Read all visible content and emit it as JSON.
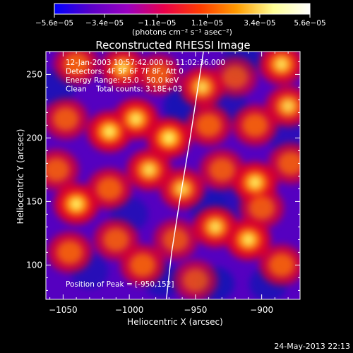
{
  "chart_data": {
    "type": "heatmap",
    "title": "Reconstructed RHESSI Image",
    "xlabel": "Heliocentric X (arcsec)",
    "ylabel": "Heliocentric Y (arcsec)",
    "xlim": [
      -1063,
      -871
    ],
    "ylim": [
      73,
      268
    ],
    "x_ticks": [
      -1050,
      -1000,
      -950,
      -900
    ],
    "x_tick_labels": [
      "−1050",
      "−1000",
      "−950",
      "−900"
    ],
    "y_ticks": [
      100,
      150,
      200,
      250
    ],
    "y_tick_labels": [
      "100",
      "150",
      "200",
      "250"
    ],
    "colorbar": {
      "min": -5.6e-05,
      "max": 5.6e-05,
      "ticks": [
        -5.6e-05,
        -3.4e-05,
        -1.1e-05,
        1.1e-05,
        3.4e-05,
        5.6e-05
      ],
      "tick_labels": [
        "−5.6e−05",
        "−3.4e−05",
        "−1.1e−05",
        "1.1e−05",
        "3.4e−05",
        "5.6e−05"
      ],
      "unit_label": "(photons cm⁻² s⁻¹ asec⁻²)",
      "colors": [
        "#0000ff",
        "#5a00c8",
        "#9a00c0",
        "#e8004a",
        "#ff3c00",
        "#ff9c00",
        "#ffff96",
        "#ffffff"
      ]
    },
    "annotations": [
      "12-Jan-2003 10:57:42.000 to 11:02:36.000",
      "Detectors: 4F 5F 6F 7F 8F, Att 0",
      "Energy Range: 25.0 - 50.0 keV",
      "Clean    Total counts: 3.18E+03"
    ],
    "peak_label": "Position of Peak = [-950,152]",
    "peak": [
      -950,
      152
    ],
    "limb_curve": [
      [
        -972,
        73
      ],
      [
        -968,
        110
      ],
      [
        -962,
        150
      ],
      [
        -954,
        200
      ],
      [
        -944,
        268
      ]
    ],
    "grid": false,
    "bright_regions": [
      {
        "x": -1040,
        "y": 258,
        "amp": 0.75
      },
      {
        "x": -1005,
        "y": 255,
        "amp": 0.8
      },
      {
        "x": -978,
        "y": 250,
        "amp": 0.7
      },
      {
        "x": -945,
        "y": 240,
        "amp": 0.8
      },
      {
        "x": -920,
        "y": 248,
        "amp": 0.6
      },
      {
        "x": -885,
        "y": 258,
        "amp": 0.85
      },
      {
        "x": -1048,
        "y": 215,
        "amp": 0.7
      },
      {
        "x": -1015,
        "y": 205,
        "amp": 0.95
      },
      {
        "x": -995,
        "y": 215,
        "amp": 0.9
      },
      {
        "x": -970,
        "y": 200,
        "amp": 1.0
      },
      {
        "x": -940,
        "y": 210,
        "amp": 0.75
      },
      {
        "x": -905,
        "y": 210,
        "amp": 0.75
      },
      {
        "x": -880,
        "y": 225,
        "amp": 0.8
      },
      {
        "x": -1055,
        "y": 175,
        "amp": 0.7
      },
      {
        "x": -1040,
        "y": 148,
        "amp": 0.95
      },
      {
        "x": -1015,
        "y": 160,
        "amp": 0.75
      },
      {
        "x": -985,
        "y": 175,
        "amp": 0.85
      },
      {
        "x": -960,
        "y": 160,
        "amp": 0.8
      },
      {
        "x": -930,
        "y": 175,
        "amp": 0.7
      },
      {
        "x": -905,
        "y": 165,
        "amp": 0.9
      },
      {
        "x": -878,
        "y": 180,
        "amp": 0.7
      },
      {
        "x": -1045,
        "y": 110,
        "amp": 0.75
      },
      {
        "x": -1010,
        "y": 120,
        "amp": 0.7
      },
      {
        "x": -990,
        "y": 100,
        "amp": 0.75
      },
      {
        "x": -965,
        "y": 120,
        "amp": 0.65
      },
      {
        "x": -935,
        "y": 130,
        "amp": 0.85
      },
      {
        "x": -910,
        "y": 120,
        "amp": 0.9
      },
      {
        "x": -885,
        "y": 100,
        "amp": 0.75
      },
      {
        "x": -950,
        "y": 88,
        "amp": 0.6
      },
      {
        "x": -900,
        "y": 145,
        "amp": 0.7
      }
    ],
    "dark_regions": [
      {
        "x": -1055,
        "y": 240,
        "amp": 0.8
      },
      {
        "x": -960,
        "y": 225,
        "amp": 0.9
      },
      {
        "x": -925,
        "y": 225,
        "amp": 0.7
      },
      {
        "x": -915,
        "y": 262,
        "amp": 0.9
      },
      {
        "x": -940,
        "y": 145,
        "amp": 0.8
      },
      {
        "x": -925,
        "y": 150,
        "amp": 0.6
      },
      {
        "x": -1000,
        "y": 140,
        "amp": 0.7
      },
      {
        "x": -1030,
        "y": 95,
        "amp": 0.7
      },
      {
        "x": -975,
        "y": 88,
        "amp": 0.8
      },
      {
        "x": -935,
        "y": 85,
        "amp": 0.9
      },
      {
        "x": -880,
        "y": 200,
        "amp": 0.6
      },
      {
        "x": -895,
        "y": 85,
        "amp": 0.8
      }
    ]
  },
  "footer": {
    "timestamp": "24-May-2013 22:13"
  }
}
